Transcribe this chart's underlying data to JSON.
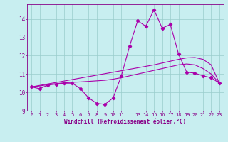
{
  "xlabel": "Windchill (Refroidissement éolien,°C)",
  "bg_color": "#c8eef0",
  "line_color": "#aa00aa",
  "grid_color": "#99cccc",
  "x": [
    0,
    1,
    2,
    3,
    4,
    5,
    6,
    7,
    8,
    9,
    10,
    11,
    12,
    13,
    14,
    15,
    16,
    17,
    18,
    19,
    20,
    21,
    22,
    23
  ],
  "y_main": [
    10.3,
    10.2,
    10.4,
    10.45,
    10.5,
    10.5,
    10.2,
    9.7,
    9.4,
    9.35,
    9.7,
    10.9,
    12.5,
    13.9,
    13.6,
    14.5,
    13.5,
    13.7,
    12.1,
    11.1,
    11.05,
    10.9,
    10.8,
    10.5
  ],
  "y_smooth1": [
    10.3,
    10.35,
    10.42,
    10.48,
    10.52,
    10.55,
    10.57,
    10.6,
    10.63,
    10.66,
    10.72,
    10.8,
    10.9,
    11.0,
    11.1,
    11.2,
    11.3,
    11.4,
    11.5,
    11.55,
    11.5,
    11.3,
    11.0,
    10.5
  ],
  "y_smooth2": [
    10.3,
    10.38,
    10.46,
    10.54,
    10.62,
    10.7,
    10.78,
    10.86,
    10.94,
    11.02,
    11.1,
    11.18,
    11.26,
    11.34,
    11.42,
    11.5,
    11.6,
    11.7,
    11.8,
    11.88,
    11.9,
    11.8,
    11.5,
    10.5
  ],
  "ylim": [
    9.0,
    14.8
  ],
  "yticks": [
    9,
    10,
    11,
    12,
    13,
    14
  ],
  "xticks": [
    0,
    1,
    2,
    3,
    4,
    5,
    6,
    7,
    8,
    9,
    10,
    11,
    13,
    14,
    15,
    16,
    17,
    18,
    19,
    20,
    21,
    22,
    23
  ],
  "xtick_labels": [
    "0",
    "1",
    "2",
    "3",
    "4",
    "5",
    "6",
    "7",
    "8",
    "9",
    "10",
    "11",
    "13",
    "14",
    "15",
    "16",
    "17",
    "18",
    "19",
    "20",
    "21",
    "22",
    "23"
  ],
  "font_color": "#880088"
}
